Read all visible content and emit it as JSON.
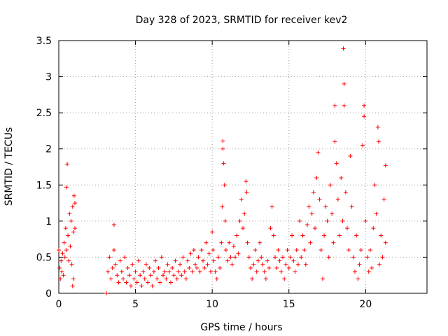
{
  "chart_data": {
    "type": "scatter",
    "title": "Day 328 of 2023, SRMTID for receiver kev2",
    "xlabel": "GPS time / hours",
    "ylabel": "SRMTID / TECUs",
    "xlim": [
      0,
      24
    ],
    "ylim": [
      0,
      3.5
    ],
    "xticks": [
      0,
      5,
      10,
      15,
      20
    ],
    "xtick_labels": [
      "0",
      "5",
      "10",
      "15",
      "20"
    ],
    "yticks": [
      0,
      0.5,
      1,
      1.5,
      2,
      2.5,
      3,
      3.5
    ],
    "ytick_labels": [
      "0",
      "0.5",
      "1",
      "1.5",
      "2",
      "2.5",
      "3",
      "3.5"
    ],
    "grid": true,
    "marker": "+",
    "color": "#ff0000",
    "series": [
      {
        "name": "SRMTID",
        "points": [
          [
            0.0,
            0.6
          ],
          [
            0.05,
            0.35
          ],
          [
            0.1,
            0.2
          ],
          [
            0.15,
            0.45
          ],
          [
            0.2,
            0.3
          ],
          [
            0.25,
            0.55
          ],
          [
            0.3,
            0.25
          ],
          [
            0.35,
            0.7
          ],
          [
            0.4,
            0.5
          ],
          [
            0.45,
            0.9
          ],
          [
            0.5,
            0.6
          ],
          [
            0.5,
            1.47
          ],
          [
            0.55,
            1.79
          ],
          [
            0.6,
            0.8
          ],
          [
            0.65,
            0.45
          ],
          [
            0.7,
            1.1
          ],
          [
            0.75,
            0.65
          ],
          [
            0.8,
            1.0
          ],
          [
            0.85,
            0.4
          ],
          [
            0.9,
            1.2
          ],
          [
            0.95,
            0.85
          ],
          [
            0.9,
            0.1
          ],
          [
            0.95,
            0.2
          ],
          [
            1.0,
            1.35
          ],
          [
            1.05,
            0.9
          ],
          [
            1.05,
            1.25
          ],
          [
            3.1,
            0.0
          ],
          [
            3.2,
            0.3
          ],
          [
            3.3,
            0.5
          ],
          [
            3.4,
            0.2
          ],
          [
            3.5,
            0.35
          ],
          [
            3.6,
            0.95
          ],
          [
            3.6,
            0.6
          ],
          [
            3.7,
            0.4
          ],
          [
            3.8,
            0.25
          ],
          [
            3.9,
            0.15
          ],
          [
            4.0,
            0.45
          ],
          [
            4.1,
            0.3
          ],
          [
            4.2,
            0.2
          ],
          [
            4.3,
            0.5
          ],
          [
            4.4,
            0.15
          ],
          [
            4.5,
            0.35
          ],
          [
            4.6,
            0.25
          ],
          [
            4.7,
            0.1
          ],
          [
            4.8,
            0.4
          ],
          [
            4.9,
            0.2
          ],
          [
            5.0,
            0.3
          ],
          [
            5.1,
            0.15
          ],
          [
            5.2,
            0.45
          ],
          [
            5.3,
            0.25
          ],
          [
            5.4,
            0.1
          ],
          [
            5.5,
            0.3
          ],
          [
            5.6,
            0.2
          ],
          [
            5.7,
            0.4
          ],
          [
            5.8,
            0.15
          ],
          [
            5.9,
            0.35
          ],
          [
            6.0,
            0.25
          ],
          [
            6.1,
            0.1
          ],
          [
            6.2,
            0.3
          ],
          [
            6.3,
            0.45
          ],
          [
            6.4,
            0.2
          ],
          [
            6.5,
            0.35
          ],
          [
            6.6,
            0.15
          ],
          [
            6.7,
            0.5
          ],
          [
            6.8,
            0.25
          ],
          [
            6.9,
            0.3
          ],
          [
            7.0,
            0.2
          ],
          [
            7.1,
            0.4
          ],
          [
            7.2,
            0.3
          ],
          [
            7.3,
            0.15
          ],
          [
            7.4,
            0.35
          ],
          [
            7.5,
            0.25
          ],
          [
            7.6,
            0.45
          ],
          [
            7.7,
            0.2
          ],
          [
            7.8,
            0.3
          ],
          [
            7.9,
            0.4
          ],
          [
            8.0,
            0.25
          ],
          [
            8.1,
            0.5
          ],
          [
            8.2,
            0.3
          ],
          [
            8.3,
            0.2
          ],
          [
            8.4,
            0.45
          ],
          [
            8.5,
            0.35
          ],
          [
            8.6,
            0.55
          ],
          [
            8.7,
            0.3
          ],
          [
            8.8,
            0.6
          ],
          [
            8.9,
            0.4
          ],
          [
            9.0,
            0.35
          ],
          [
            9.1,
            0.5
          ],
          [
            9.2,
            0.3
          ],
          [
            9.3,
            0.6
          ],
          [
            9.4,
            0.45
          ],
          [
            9.5,
            0.35
          ],
          [
            9.6,
            0.7
          ],
          [
            9.7,
            0.4
          ],
          [
            9.8,
            0.55
          ],
          [
            9.9,
            0.3
          ],
          [
            10.0,
            0.85
          ],
          [
            10.05,
            0.6
          ],
          [
            10.1,
            0.45
          ],
          [
            10.2,
            0.3
          ],
          [
            10.3,
            0.2
          ],
          [
            10.4,
            0.5
          ],
          [
            10.5,
            0.35
          ],
          [
            10.6,
            0.7
          ],
          [
            10.65,
            1.2
          ],
          [
            10.7,
            2.11
          ],
          [
            10.7,
            2.0
          ],
          [
            10.75,
            1.8
          ],
          [
            10.8,
            1.5
          ],
          [
            10.85,
            1.0
          ],
          [
            10.9,
            0.6
          ],
          [
            11.0,
            0.45
          ],
          [
            11.1,
            0.7
          ],
          [
            11.2,
            0.5
          ],
          [
            11.3,
            0.4
          ],
          [
            11.4,
            0.65
          ],
          [
            11.5,
            0.5
          ],
          [
            11.6,
            0.8
          ],
          [
            11.7,
            0.55
          ],
          [
            11.8,
            1.0
          ],
          [
            11.9,
            1.3
          ],
          [
            12.0,
            0.9
          ],
          [
            12.1,
            1.1
          ],
          [
            12.2,
            1.55
          ],
          [
            12.25,
            1.4
          ],
          [
            12.3,
            0.7
          ],
          [
            12.4,
            0.5
          ],
          [
            12.5,
            0.35
          ],
          [
            12.6,
            0.2
          ],
          [
            12.7,
            0.4
          ],
          [
            12.8,
            0.6
          ],
          [
            12.9,
            0.3
          ],
          [
            13.0,
            0.45
          ],
          [
            13.1,
            0.7
          ],
          [
            13.2,
            0.5
          ],
          [
            13.3,
            0.4
          ],
          [
            13.4,
            0.3
          ],
          [
            13.5,
            0.2
          ],
          [
            13.6,
            0.45
          ],
          [
            13.7,
            0.35
          ],
          [
            13.8,
            0.9
          ],
          [
            13.9,
            1.2
          ],
          [
            14.0,
            0.8
          ],
          [
            14.1,
            0.5
          ],
          [
            14.2,
            0.35
          ],
          [
            14.3,
            0.6
          ],
          [
            14.4,
            0.45
          ],
          [
            14.5,
            0.3
          ],
          [
            14.6,
            0.5
          ],
          [
            14.7,
            0.2
          ],
          [
            14.8,
            0.4
          ],
          [
            14.9,
            0.6
          ],
          [
            15.0,
            0.35
          ],
          [
            15.1,
            0.5
          ],
          [
            15.2,
            0.8
          ],
          [
            15.3,
            0.45
          ],
          [
            15.4,
            0.3
          ],
          [
            15.5,
            0.6
          ],
          [
            15.6,
            0.4
          ],
          [
            15.7,
            1.0
          ],
          [
            15.8,
            0.5
          ],
          [
            15.9,
            0.8
          ],
          [
            16.0,
            0.6
          ],
          [
            16.1,
            0.4
          ],
          [
            16.2,
            0.95
          ],
          [
            16.3,
            1.2
          ],
          [
            16.4,
            0.7
          ],
          [
            16.5,
            1.1
          ],
          [
            16.6,
            1.4
          ],
          [
            16.7,
            0.9
          ],
          [
            16.8,
            1.6
          ],
          [
            16.9,
            1.95
          ],
          [
            17.0,
            1.3
          ],
          [
            17.1,
            0.6
          ],
          [
            17.2,
            0.2
          ],
          [
            17.3,
            0.8
          ],
          [
            17.4,
            1.2
          ],
          [
            17.5,
            1.0
          ],
          [
            17.6,
            0.5
          ],
          [
            17.7,
            1.5
          ],
          [
            17.8,
            1.1
          ],
          [
            17.9,
            0.7
          ],
          [
            18.0,
            2.1
          ],
          [
            18.0,
            2.6
          ],
          [
            18.1,
            1.8
          ],
          [
            18.2,
            1.3
          ],
          [
            18.3,
            0.8
          ],
          [
            18.4,
            1.6
          ],
          [
            18.5,
            1.0
          ],
          [
            18.55,
            3.39
          ],
          [
            18.6,
            2.9
          ],
          [
            18.6,
            2.6
          ],
          [
            18.7,
            1.4
          ],
          [
            18.8,
            0.9
          ],
          [
            18.9,
            0.6
          ],
          [
            19.0,
            1.9
          ],
          [
            19.1,
            1.2
          ],
          [
            19.2,
            0.5
          ],
          [
            19.3,
            0.3
          ],
          [
            19.4,
            0.8
          ],
          [
            19.5,
            0.2
          ],
          [
            19.6,
            0.4
          ],
          [
            19.7,
            0.6
          ],
          [
            19.8,
            2.05
          ],
          [
            19.9,
            2.6
          ],
          [
            19.9,
            2.45
          ],
          [
            20.0,
            1.0
          ],
          [
            20.1,
            0.5
          ],
          [
            20.2,
            0.3
          ],
          [
            20.3,
            0.6
          ],
          [
            20.4,
            0.35
          ],
          [
            20.5,
            0.9
          ],
          [
            20.6,
            1.5
          ],
          [
            20.7,
            1.1
          ],
          [
            20.8,
            2.3
          ],
          [
            20.85,
            2.1
          ],
          [
            20.9,
            0.4
          ],
          [
            21.0,
            0.8
          ],
          [
            21.1,
            0.5
          ],
          [
            21.2,
            1.3
          ],
          [
            21.3,
            1.77
          ],
          [
            21.3,
            0.7
          ]
        ]
      }
    ]
  }
}
